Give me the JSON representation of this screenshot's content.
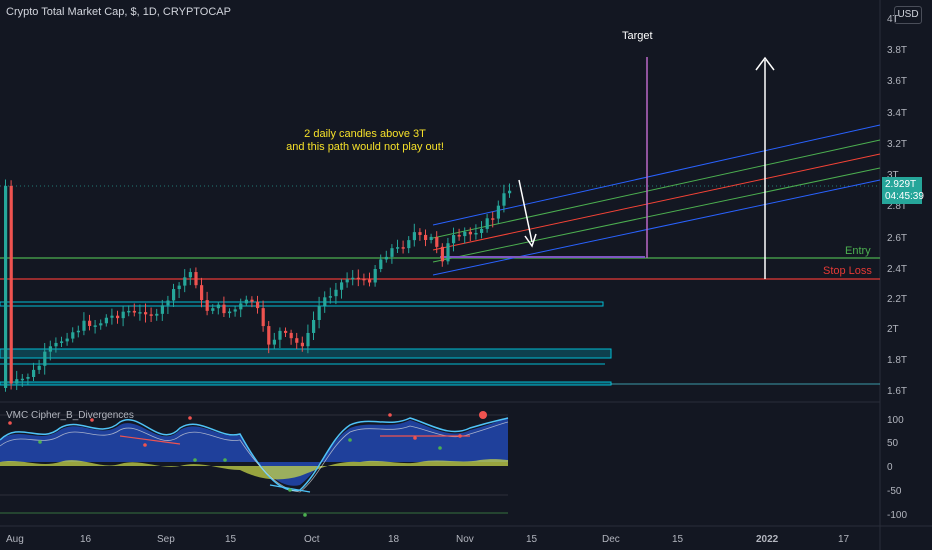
{
  "header": {
    "title": "Crypto Total Market Cap, $, 1D, CRYPTOCAP",
    "currency_button": "USD"
  },
  "price_badge": {
    "price": "2.929T",
    "countdown": "04:45:39"
  },
  "annotations": {
    "note_line1": "2 daily candles above 3T",
    "note_line2": "and this path would not play out!",
    "target": "Target",
    "entry": "Entry",
    "stop_loss": "Stop Loss"
  },
  "price_axis": {
    "labels": [
      "4T",
      "3.8T",
      "3.6T",
      "3.4T",
      "3.2T",
      "3T",
      "2.8T",
      "2.6T",
      "2.4T",
      "2.2T",
      "2T",
      "1.8T",
      "1.6T"
    ]
  },
  "indicator": {
    "title": "VMC Cipher_B_Divergences",
    "axis_labels": [
      "100",
      "50",
      "0",
      "-50",
      "-100"
    ]
  },
  "time_axis": {
    "labels": [
      "Aug",
      "16",
      "Sep",
      "15",
      "Oct",
      "18",
      "Nov",
      "15",
      "Dec",
      "15",
      "2022",
      "17"
    ]
  },
  "colors": {
    "up": "#26a69a",
    "down": "#ef5350",
    "background": "#131722",
    "entry": "#4caf50",
    "stop": "#e53935"
  }
}
